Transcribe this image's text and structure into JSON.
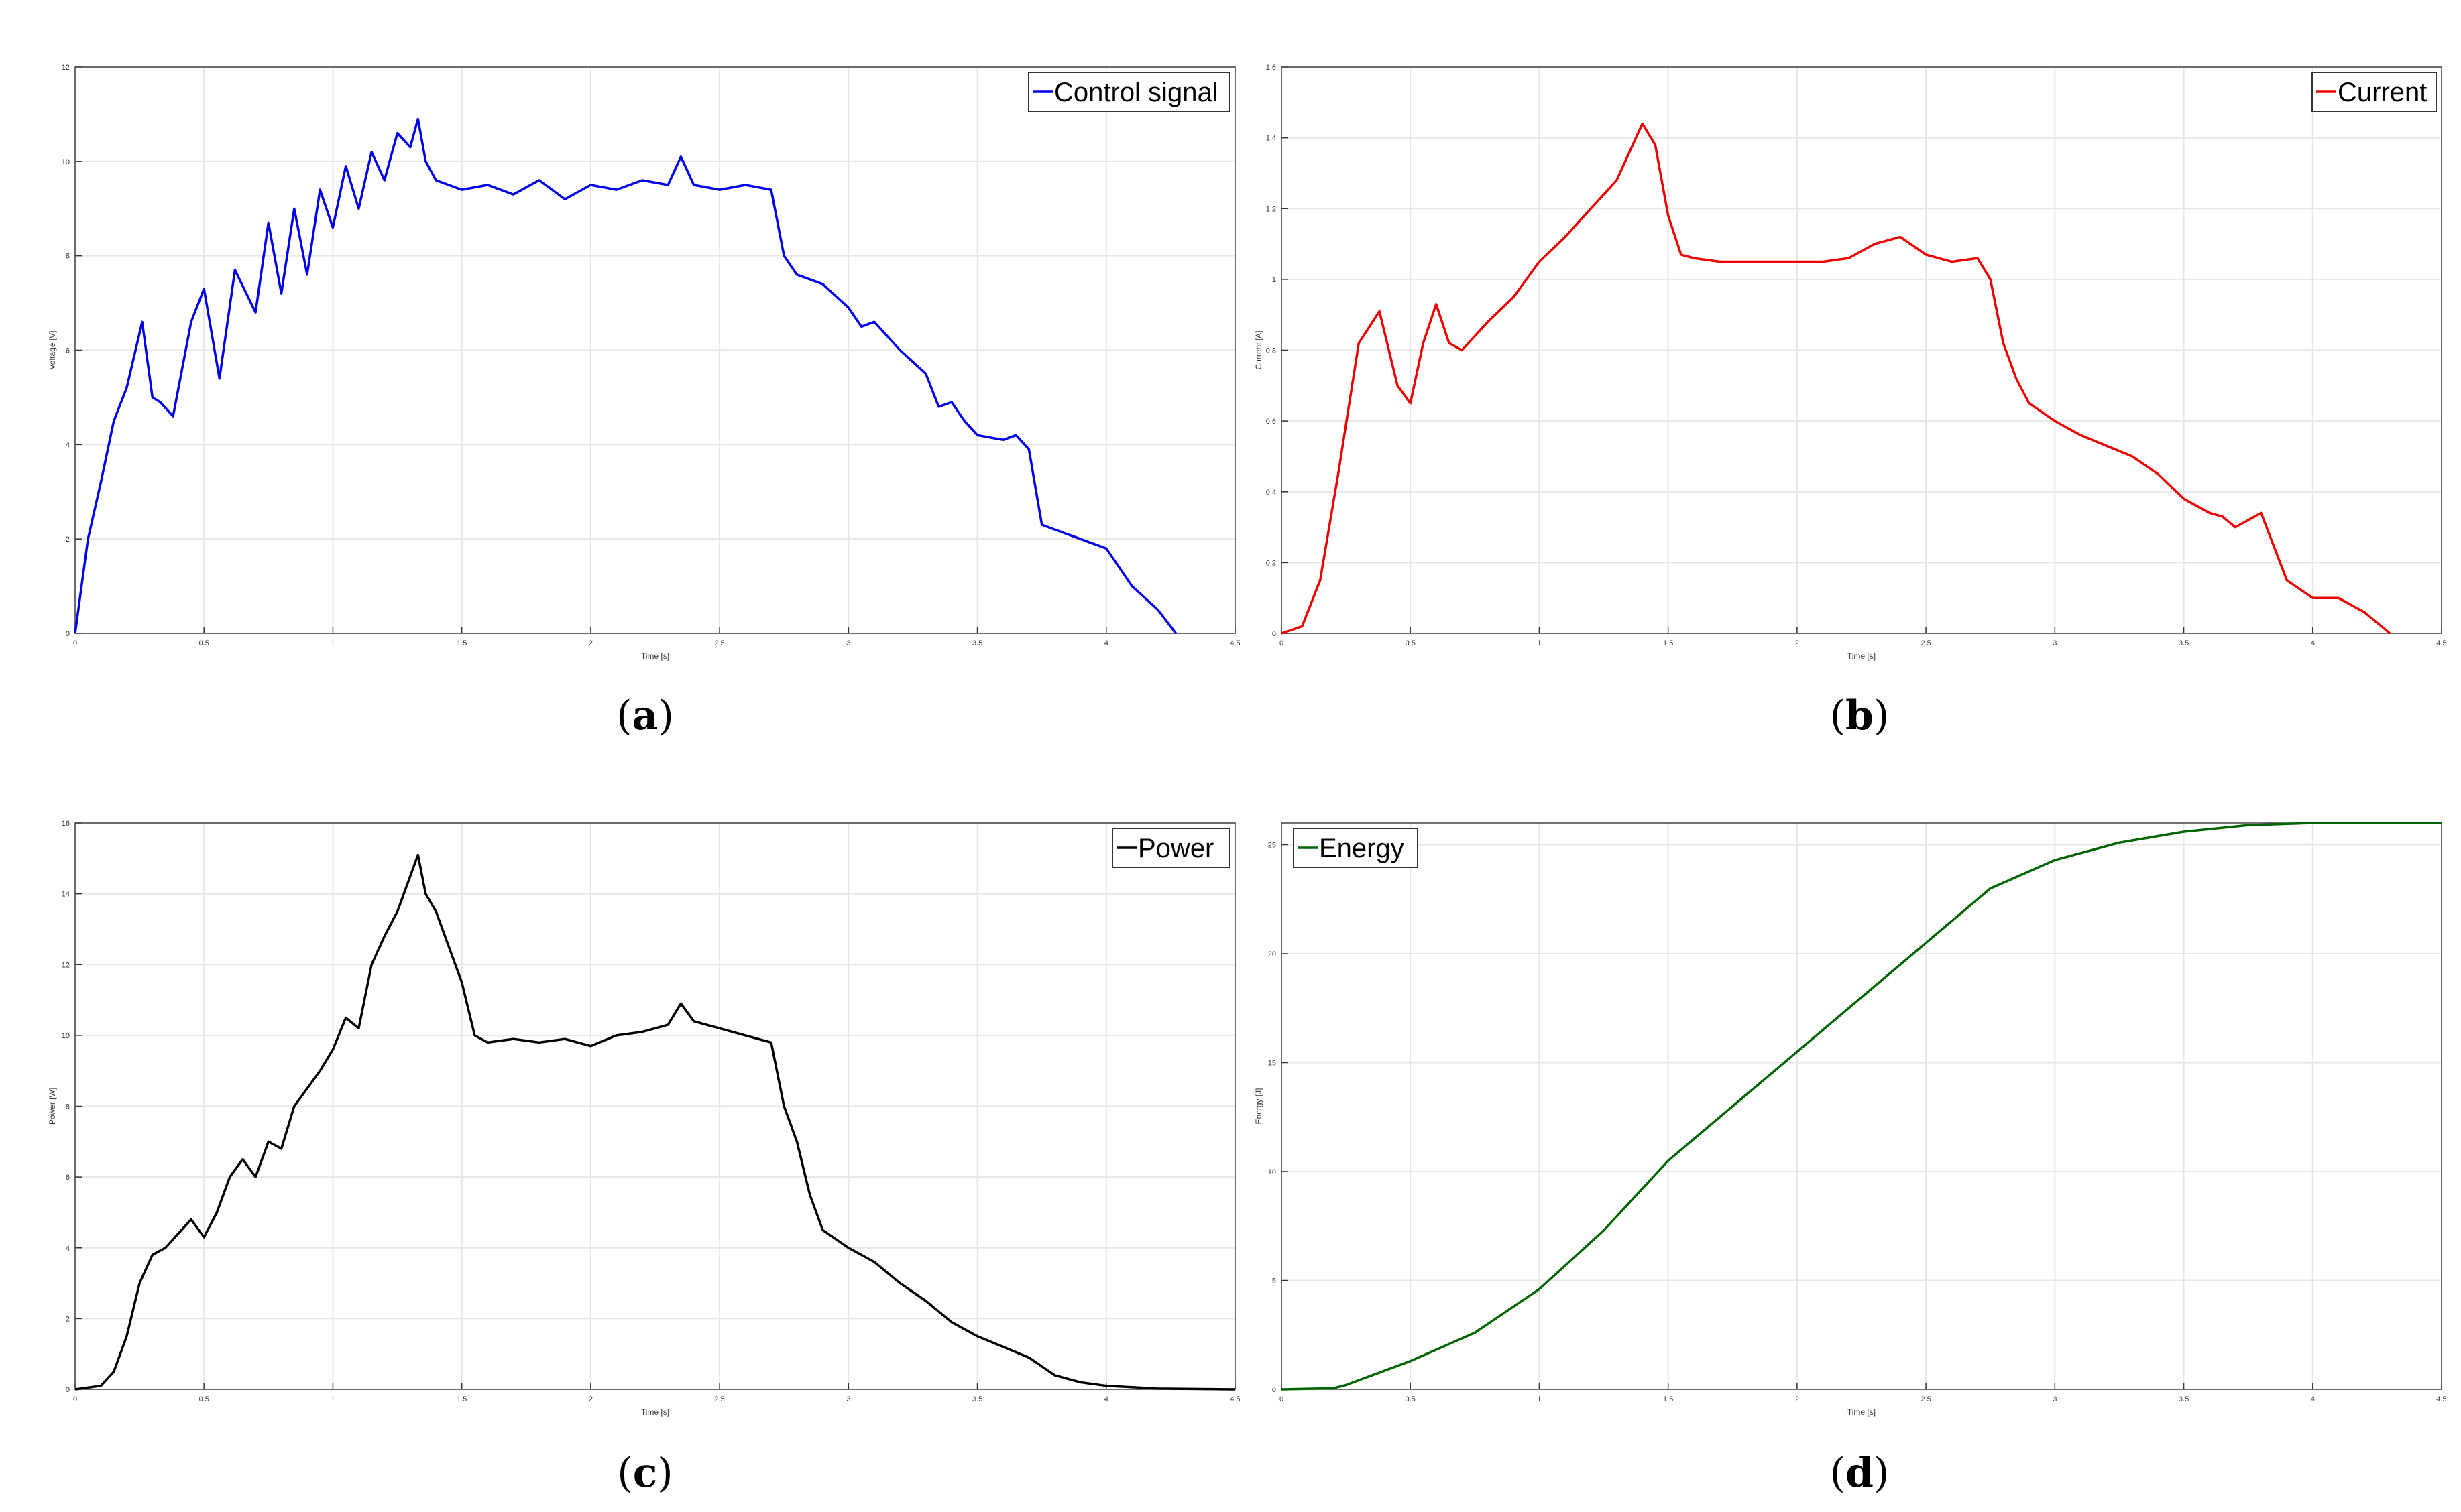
{
  "figure": {
    "panels": [
      {
        "caption_open": "(",
        "caption_letter": "a",
        "caption_close": ")"
      },
      {
        "caption_open": "(",
        "caption_letter": "b",
        "caption_close": ")"
      },
      {
        "caption_open": "(",
        "caption_letter": "c",
        "caption_close": ")"
      },
      {
        "caption_open": "(",
        "caption_letter": "d",
        "caption_close": ")"
      }
    ]
  },
  "chart_data": [
    {
      "type": "line",
      "xlabel": "Time [s]",
      "ylabel": "Voltage [V]",
      "xlim": [
        0,
        4.5
      ],
      "ylim": [
        0,
        12
      ],
      "xticks": [
        "0",
        "0.5",
        "1",
        "1.5",
        "2",
        "2.5",
        "3",
        "3.5",
        "4",
        "4.5"
      ],
      "yticks": [
        "0",
        "2",
        "4",
        "6",
        "8",
        "10",
        "12"
      ],
      "grid": true,
      "legend_position": "top-right",
      "color": "#0000ee",
      "series": [
        {
          "name": "Control signal",
          "x": [
            0,
            0.05,
            0.1,
            0.15,
            0.2,
            0.26,
            0.3,
            0.33,
            0.38,
            0.45,
            0.5,
            0.56,
            0.62,
            0.7,
            0.75,
            0.8,
            0.85,
            0.9,
            0.95,
            1.0,
            1.05,
            1.1,
            1.15,
            1.2,
            1.25,
            1.3,
            1.33,
            1.36,
            1.4,
            1.5,
            1.6,
            1.7,
            1.8,
            1.9,
            2.0,
            2.1,
            2.2,
            2.3,
            2.35,
            2.4,
            2.5,
            2.6,
            2.7,
            2.75,
            2.8,
            2.9,
            3.0,
            3.05,
            3.1,
            3.2,
            3.3,
            3.35,
            3.4,
            3.45,
            3.5,
            3.6,
            3.65,
            3.7,
            3.75,
            3.8,
            3.9,
            4.0,
            4.1,
            4.2,
            4.27
          ],
          "y": [
            0,
            2.0,
            3.2,
            4.5,
            5.2,
            6.6,
            5.0,
            4.9,
            4.6,
            6.6,
            7.3,
            5.4,
            7.7,
            6.8,
            8.7,
            7.2,
            9.0,
            7.6,
            9.4,
            8.6,
            9.9,
            9.0,
            10.2,
            9.6,
            10.6,
            10.3,
            10.9,
            10.0,
            9.6,
            9.4,
            9.5,
            9.3,
            9.6,
            9.2,
            9.5,
            9.4,
            9.6,
            9.5,
            10.1,
            9.5,
            9.4,
            9.5,
            9.4,
            8.0,
            7.6,
            7.4,
            6.9,
            6.5,
            6.6,
            6.0,
            5.5,
            4.8,
            4.9,
            4.5,
            4.2,
            4.1,
            4.2,
            3.9,
            2.3,
            2.2,
            2.0,
            1.8,
            1.0,
            0.5,
            0
          ]
        }
      ]
    },
    {
      "type": "line",
      "xlabel": "Time [s]",
      "ylabel": "Current [A]",
      "xlim": [
        0,
        4.5
      ],
      "ylim": [
        0,
        1.6
      ],
      "xticks": [
        "0",
        "0.5",
        "1",
        "1.5",
        "2",
        "2.5",
        "3",
        "3.5",
        "4",
        "4.5"
      ],
      "yticks": [
        "0",
        "0.2",
        "0.4",
        "0.6",
        "0.8",
        "1",
        "1.2",
        "1.4",
        "1.6"
      ],
      "grid": true,
      "legend_position": "top-right",
      "color": "#ee0000",
      "series": [
        {
          "name": "Current",
          "x": [
            0,
            0.08,
            0.15,
            0.22,
            0.3,
            0.38,
            0.45,
            0.5,
            0.55,
            0.6,
            0.65,
            0.7,
            0.8,
            0.9,
            1.0,
            1.1,
            1.2,
            1.3,
            1.4,
            1.45,
            1.5,
            1.55,
            1.6,
            1.7,
            1.8,
            1.9,
            2.0,
            2.1,
            2.2,
            2.3,
            2.4,
            2.5,
            2.6,
            2.7,
            2.75,
            2.8,
            2.85,
            2.9,
            3.0,
            3.1,
            3.2,
            3.3,
            3.4,
            3.5,
            3.6,
            3.65,
            3.7,
            3.75,
            3.8,
            3.9,
            4.0,
            4.1,
            4.2,
            4.3
          ],
          "y": [
            0,
            0.02,
            0.15,
            0.45,
            0.82,
            0.91,
            0.7,
            0.65,
            0.82,
            0.93,
            0.82,
            0.8,
            0.88,
            0.95,
            1.05,
            1.12,
            1.2,
            1.28,
            1.44,
            1.38,
            1.18,
            1.07,
            1.06,
            1.05,
            1.05,
            1.05,
            1.05,
            1.05,
            1.06,
            1.1,
            1.12,
            1.07,
            1.05,
            1.06,
            1.0,
            0.82,
            0.72,
            0.65,
            0.6,
            0.56,
            0.53,
            0.5,
            0.45,
            0.38,
            0.34,
            0.33,
            0.3,
            0.32,
            0.34,
            0.15,
            0.1,
            0.1,
            0.06,
            0
          ]
        }
      ]
    },
    {
      "type": "line",
      "xlabel": "Time [s]",
      "ylabel": "Power [W]",
      "xlim": [
        0,
        4.5
      ],
      "ylim": [
        0,
        16
      ],
      "xticks": [
        "0",
        "0.5",
        "1",
        "1.5",
        "2",
        "2.5",
        "3",
        "3.5",
        "4",
        "4.5"
      ],
      "yticks": [
        "0",
        "2",
        "4",
        "6",
        "8",
        "10",
        "12",
        "14",
        "16"
      ],
      "grid": true,
      "legend_position": "top-right",
      "color": "#000000",
      "series": [
        {
          "name": "Power",
          "x": [
            0,
            0.1,
            0.15,
            0.2,
            0.25,
            0.3,
            0.35,
            0.4,
            0.45,
            0.5,
            0.55,
            0.6,
            0.65,
            0.7,
            0.75,
            0.8,
            0.85,
            0.9,
            0.95,
            1.0,
            1.05,
            1.1,
            1.15,
            1.2,
            1.25,
            1.3,
            1.33,
            1.36,
            1.4,
            1.45,
            1.5,
            1.55,
            1.6,
            1.7,
            1.8,
            1.9,
            2.0,
            2.1,
            2.2,
            2.3,
            2.35,
            2.4,
            2.5,
            2.6,
            2.7,
            2.75,
            2.8,
            2.85,
            2.9,
            3.0,
            3.1,
            3.2,
            3.3,
            3.4,
            3.5,
            3.6,
            3.7,
            3.8,
            3.9,
            4.0,
            4.2,
            4.5
          ],
          "y": [
            0,
            0.1,
            0.5,
            1.5,
            3.0,
            3.8,
            4.0,
            4.4,
            4.8,
            4.3,
            5.0,
            6.0,
            6.5,
            6.0,
            7.0,
            6.8,
            8.0,
            8.5,
            9.0,
            9.6,
            10.5,
            10.2,
            12.0,
            12.8,
            13.5,
            14.5,
            15.1,
            14.0,
            13.5,
            12.5,
            11.5,
            10.0,
            9.8,
            9.9,
            9.8,
            9.9,
            9.7,
            10.0,
            10.1,
            10.3,
            10.9,
            10.4,
            10.2,
            10.0,
            9.8,
            8.0,
            7.0,
            5.5,
            4.5,
            4.0,
            3.6,
            3.0,
            2.5,
            1.9,
            1.5,
            1.2,
            0.9,
            0.4,
            0.2,
            0.1,
            0.02,
            0
          ]
        }
      ]
    },
    {
      "type": "line",
      "xlabel": "Time [s]",
      "ylabel": "Energy [J]",
      "xlim": [
        0,
        4.5
      ],
      "ylim": [
        0,
        26
      ],
      "xticks": [
        "0",
        "0.5",
        "1",
        "1.5",
        "2",
        "2.5",
        "3",
        "3.5",
        "4",
        "4.5"
      ],
      "yticks": [
        "0",
        "5",
        "10",
        "15",
        "20",
        "25"
      ],
      "grid": true,
      "legend_position": "top-left",
      "color": "#006400",
      "series": [
        {
          "name": "Energy",
          "x": [
            0,
            0.2,
            0.25,
            0.5,
            0.75,
            1.0,
            1.25,
            1.5,
            1.75,
            2.0,
            2.25,
            2.5,
            2.75,
            3.0,
            3.25,
            3.5,
            3.75,
            4.0,
            4.5
          ],
          "y": [
            0,
            0.05,
            0.2,
            1.3,
            2.6,
            4.6,
            7.3,
            10.5,
            13.0,
            15.5,
            18.0,
            20.5,
            23.0,
            24.3,
            25.1,
            25.6,
            25.9,
            26.0,
            26.0
          ]
        }
      ]
    }
  ]
}
